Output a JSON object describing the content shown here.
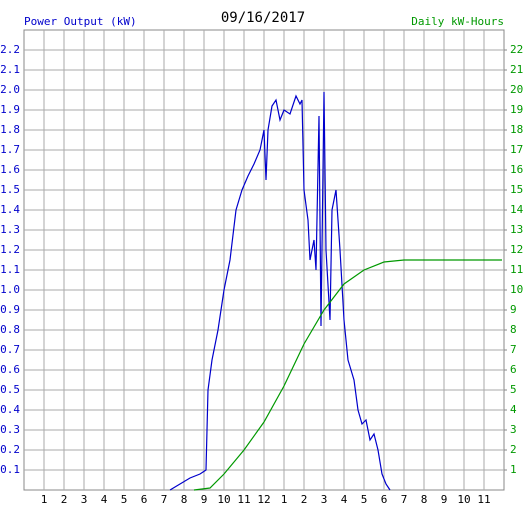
{
  "chart_data": {
    "type": "line",
    "title": "09/16/2017",
    "ylabel": "Power Output (kW)",
    "y2label": "Daily kW-Hours",
    "xlim": [
      0,
      24
    ],
    "xticks": [
      1,
      2,
      3,
      4,
      5,
      6,
      7,
      8,
      9,
      10,
      11,
      12,
      {
        "value": 13,
        "label": "1"
      },
      {
        "value": 14,
        "label": "2"
      },
      {
        "value": 15,
        "label": "3"
      },
      {
        "value": 16,
        "label": "4"
      },
      {
        "value": 17,
        "label": "5"
      },
      {
        "value": 18,
        "label": "6"
      },
      {
        "value": 19,
        "label": "7"
      },
      {
        "value": 20,
        "label": "8"
      },
      {
        "value": 21,
        "label": "9"
      },
      {
        "value": 22,
        "label": "10"
      },
      {
        "value": 23,
        "label": "11"
      }
    ],
    "ylim": [
      0,
      2.3
    ],
    "yticks": [
      {
        "value": 0.1,
        "label": "0.1"
      },
      {
        "value": 0.2,
        "label": "0.2"
      },
      {
        "value": 0.3,
        "label": "0.3"
      },
      {
        "value": 0.4,
        "label": "0.4"
      },
      {
        "value": 0.5,
        "label": "0.5"
      },
      {
        "value": 0.6,
        "label": "0.6"
      },
      {
        "value": 0.7,
        "label": "0.7"
      },
      {
        "value": 0.8,
        "label": "0.8"
      },
      {
        "value": 0.9,
        "label": "0.9"
      },
      {
        "value": 1,
        "label": "1.0"
      },
      {
        "value": 1.1,
        "label": "1.1"
      },
      {
        "value": 1.2,
        "label": "1.2"
      },
      {
        "value": 1.3,
        "label": "1.3"
      },
      {
        "value": 1.4,
        "label": "1.4"
      },
      {
        "value": 1.5,
        "label": "1.5"
      },
      {
        "value": 1.6,
        "label": "1.6"
      },
      {
        "value": 1.7,
        "label": "1.7"
      },
      {
        "value": 1.8,
        "label": "1.8"
      },
      {
        "value": 1.9,
        "label": "1.9"
      },
      {
        "value": 2,
        "label": "2.0"
      },
      {
        "value": 2.1,
        "label": "2.1"
      },
      {
        "value": 2.2,
        "label": "2.2"
      }
    ],
    "y2lim": [
      0,
      23
    ],
    "y2ticks": [
      1,
      2,
      3,
      4,
      5,
      6,
      7,
      8,
      9,
      10,
      11,
      12,
      13,
      14,
      15,
      16,
      17,
      18,
      19,
      20,
      21,
      22
    ],
    "grid": true,
    "series": [
      {
        "color": "#0000cc",
        "x": [
          7.3,
          7.8,
          8.3,
          8.8,
          9.1,
          9.2,
          9.4,
          9.7,
          10,
          10.3,
          10.6,
          10.9,
          11.2,
          11.5,
          11.8,
          12,
          12.1,
          12.2,
          12.4,
          12.6,
          12.8,
          13,
          13.3,
          13.6,
          13.8,
          13.9,
          14,
          14.2,
          14.3,
          14.5,
          14.6,
          14.75,
          14.85,
          15,
          15.1,
          15.3,
          15.4,
          15.6,
          15.8,
          16,
          16.2,
          16.5,
          16.7,
          16.9,
          17.1,
          17.3,
          17.5,
          17.7,
          17.9,
          18.1,
          18.3
        ],
        "values": [
          0,
          0.03,
          0.06,
          0.08,
          0.1,
          0.5,
          0.65,
          0.8,
          1.0,
          1.15,
          1.4,
          1.5,
          1.57,
          1.63,
          1.7,
          1.8,
          1.55,
          1.8,
          1.92,
          1.95,
          1.85,
          1.9,
          1.88,
          1.97,
          1.93,
          1.95,
          1.5,
          1.35,
          1.15,
          1.25,
          1.1,
          1.87,
          0.82,
          1.99,
          1.2,
          0.85,
          1.4,
          1.5,
          1.2,
          0.85,
          0.65,
          0.55,
          0.4,
          0.33,
          0.35,
          0.25,
          0.28,
          0.2,
          0.08,
          0.03,
          0
        ]
      },
      {
        "color": "#009900",
        "axis": "y2",
        "x": [
          8.5,
          9.3,
          10,
          11,
          12,
          13,
          14,
          15,
          16,
          17,
          18,
          19,
          23.9
        ],
        "values": [
          0,
          0.1,
          0.8,
          2.0,
          3.4,
          5.2,
          7.3,
          9.0,
          10.3,
          11.0,
          11.4,
          11.5,
          11.5
        ]
      }
    ]
  }
}
